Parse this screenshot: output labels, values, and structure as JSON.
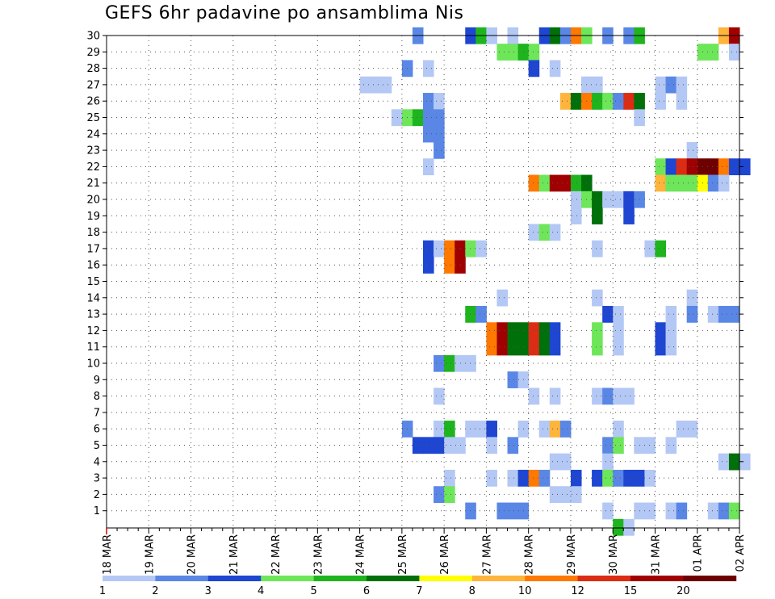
{
  "chart_data": {
    "type": "heatmap",
    "title": "GEFS 6hr padavine po ansamblima Nis",
    "xlabel": "",
    "ylabel": "",
    "grid": true,
    "x_tick_labels": [
      "18 MAR",
      "19 MAR",
      "20 MAR",
      "21 MAR",
      "22 MAR",
      "23 MAR",
      "24 MAR",
      "25 MAR",
      "26 MAR",
      "27 MAR",
      "28 MAR",
      "29 MAR",
      "30 MAR",
      "31 MAR",
      "01 APR",
      "02 APR"
    ],
    "y_tick_labels": [
      "1",
      "2",
      "3",
      "4",
      "5",
      "6",
      "7",
      "8",
      "9",
      "10",
      "11",
      "12",
      "13",
      "14",
      "15",
      "16",
      "17",
      "18",
      "19",
      "20",
      "21",
      "22",
      "23",
      "24",
      "25",
      "26",
      "27",
      "28",
      "29",
      "30"
    ],
    "x_unit": "6-hour steps since 18 MAR 00Z",
    "xlim": [
      0,
      60
    ],
    "ylim": [
      0.5,
      30.5
    ],
    "legend": {
      "placement": "bottom",
      "labels": [
        "1",
        "2",
        "3",
        "4",
        "5",
        "6",
        "7",
        "8",
        "10",
        "12",
        "15",
        "20"
      ],
      "colors": [
        "#b4c8f5",
        "#5a87e6",
        "#1e46d2",
        "#6ee65a",
        "#1eb41e",
        "#00700a",
        "#ffff00",
        "#ffb43c",
        "#ff7800",
        "#dc2d14",
        "#a00000",
        "#6e0000"
      ]
    },
    "cells": [
      [
        30,
        29,
        1
      ],
      [
        30,
        34,
        2
      ],
      [
        30,
        35,
        4
      ],
      [
        30,
        36,
        0
      ],
      [
        30,
        38,
        0
      ],
      [
        30,
        41,
        2
      ],
      [
        30,
        42,
        5
      ],
      [
        30,
        43,
        1
      ],
      [
        30,
        44,
        8
      ],
      [
        30,
        45,
        3
      ],
      [
        30,
        47,
        1
      ],
      [
        30,
        49,
        1
      ],
      [
        30,
        50,
        4
      ],
      [
        30,
        58,
        7
      ],
      [
        30,
        59,
        10
      ],
      [
        29,
        37,
        3
      ],
      [
        29,
        38,
        3
      ],
      [
        29,
        39,
        4
      ],
      [
        29,
        40,
        3
      ],
      [
        29,
        56,
        3
      ],
      [
        29,
        57,
        3
      ],
      [
        29,
        59,
        0
      ],
      [
        28,
        28,
        1
      ],
      [
        28,
        30,
        0
      ],
      [
        28,
        40,
        2
      ],
      [
        28,
        42,
        0
      ],
      [
        27,
        24,
        0
      ],
      [
        27,
        25,
        0
      ],
      [
        27,
        26,
        0
      ],
      [
        27,
        45,
        0
      ],
      [
        27,
        46,
        0
      ],
      [
        27,
        52,
        0
      ],
      [
        27,
        53,
        1
      ],
      [
        27,
        54,
        0
      ],
      [
        26,
        30,
        1
      ],
      [
        26,
        31,
        0
      ],
      [
        26,
        43,
        7
      ],
      [
        26,
        44,
        5
      ],
      [
        26,
        45,
        8
      ],
      [
        26,
        46,
        4
      ],
      [
        26,
        47,
        3
      ],
      [
        26,
        48,
        1
      ],
      [
        26,
        49,
        9
      ],
      [
        26,
        50,
        5
      ],
      [
        26,
        52,
        0
      ],
      [
        26,
        54,
        0
      ],
      [
        25,
        27,
        0
      ],
      [
        25,
        28,
        3
      ],
      [
        25,
        29,
        4
      ],
      [
        25,
        30,
        1
      ],
      [
        25,
        31,
        1
      ],
      [
        25,
        50,
        0
      ],
      [
        24,
        30,
        1
      ],
      [
        24,
        31,
        1
      ],
      [
        23,
        31,
        1
      ],
      [
        23,
        55,
        0
      ],
      [
        22,
        30,
        0
      ],
      [
        22,
        52,
        3
      ],
      [
        22,
        53,
        2
      ],
      [
        22,
        54,
        9
      ],
      [
        22,
        55,
        10
      ],
      [
        22,
        56,
        11
      ],
      [
        22,
        57,
        11
      ],
      [
        22,
        58,
        8
      ],
      [
        22,
        59,
        2
      ],
      [
        22,
        60,
        2
      ],
      [
        21,
        40,
        8
      ],
      [
        21,
        41,
        3
      ],
      [
        21,
        42,
        10
      ],
      [
        21,
        43,
        10
      ],
      [
        21,
        44,
        4
      ],
      [
        21,
        45,
        5
      ],
      [
        21,
        52,
        7
      ],
      [
        21,
        53,
        3
      ],
      [
        21,
        54,
        3
      ],
      [
        21,
        55,
        3
      ],
      [
        21,
        56,
        6
      ],
      [
        21,
        57,
        1
      ],
      [
        21,
        58,
        0
      ],
      [
        20,
        44,
        0
      ],
      [
        20,
        45,
        3
      ],
      [
        20,
        46,
        5
      ],
      [
        20,
        47,
        0
      ],
      [
        20,
        48,
        0
      ],
      [
        20,
        49,
        2
      ],
      [
        20,
        50,
        1
      ],
      [
        19,
        44,
        0
      ],
      [
        19,
        46,
        5
      ],
      [
        19,
        49,
        2
      ],
      [
        18,
        40,
        0
      ],
      [
        18,
        41,
        3
      ],
      [
        18,
        42,
        0
      ],
      [
        17,
        30,
        2
      ],
      [
        17,
        31,
        0
      ],
      [
        17,
        32,
        8
      ],
      [
        17,
        33,
        10
      ],
      [
        17,
        34,
        3
      ],
      [
        17,
        35,
        0
      ],
      [
        17,
        46,
        0
      ],
      [
        17,
        51,
        0
      ],
      [
        17,
        52,
        4
      ],
      [
        16,
        30,
        2
      ],
      [
        16,
        32,
        8
      ],
      [
        16,
        33,
        10
      ],
      [
        14,
        37,
        0
      ],
      [
        14,
        46,
        0
      ],
      [
        14,
        55,
        0
      ],
      [
        13,
        34,
        4
      ],
      [
        13,
        35,
        1
      ],
      [
        13,
        47,
        2
      ],
      [
        13,
        48,
        0
      ],
      [
        13,
        53,
        0
      ],
      [
        13,
        55,
        1
      ],
      [
        13,
        57,
        0
      ],
      [
        13,
        58,
        1
      ],
      [
        13,
        59,
        1
      ],
      [
        12,
        36,
        8
      ],
      [
        12,
        37,
        10
      ],
      [
        12,
        38,
        5
      ],
      [
        12,
        39,
        5
      ],
      [
        12,
        40,
        9
      ],
      [
        12,
        41,
        5
      ],
      [
        12,
        42,
        2
      ],
      [
        12,
        46,
        3
      ],
      [
        12,
        48,
        0
      ],
      [
        12,
        52,
        2
      ],
      [
        12,
        53,
        0
      ],
      [
        11,
        36,
        8
      ],
      [
        11,
        37,
        10
      ],
      [
        11,
        38,
        5
      ],
      [
        11,
        39,
        5
      ],
      [
        11,
        40,
        9
      ],
      [
        11,
        41,
        5
      ],
      [
        11,
        42,
        2
      ],
      [
        11,
        46,
        3
      ],
      [
        11,
        48,
        0
      ],
      [
        11,
        52,
        2
      ],
      [
        11,
        53,
        0
      ],
      [
        10,
        31,
        1
      ],
      [
        10,
        32,
        4
      ],
      [
        10,
        33,
        0
      ],
      [
        10,
        34,
        0
      ],
      [
        9,
        38,
        1
      ],
      [
        9,
        39,
        0
      ],
      [
        8,
        31,
        0
      ],
      [
        8,
        40,
        0
      ],
      [
        8,
        42,
        0
      ],
      [
        8,
        46,
        0
      ],
      [
        8,
        47,
        1
      ],
      [
        8,
        48,
        0
      ],
      [
        8,
        49,
        0
      ],
      [
        6,
        28,
        1
      ],
      [
        6,
        31,
        0
      ],
      [
        6,
        32,
        4
      ],
      [
        6,
        34,
        0
      ],
      [
        6,
        35,
        0
      ],
      [
        6,
        36,
        2
      ],
      [
        6,
        39,
        0
      ],
      [
        6,
        41,
        0
      ],
      [
        6,
        42,
        7
      ],
      [
        6,
        43,
        1
      ],
      [
        6,
        48,
        0
      ],
      [
        6,
        54,
        0
      ],
      [
        6,
        55,
        0
      ],
      [
        5,
        29,
        2
      ],
      [
        5,
        30,
        2
      ],
      [
        5,
        31,
        2
      ],
      [
        5,
        32,
        0
      ],
      [
        5,
        33,
        0
      ],
      [
        5,
        36,
        0
      ],
      [
        5,
        38,
        1
      ],
      [
        5,
        47,
        1
      ],
      [
        5,
        48,
        3
      ],
      [
        5,
        50,
        0
      ],
      [
        5,
        51,
        0
      ],
      [
        5,
        53,
        0
      ],
      [
        4,
        42,
        0
      ],
      [
        4,
        43,
        0
      ],
      [
        4,
        47,
        0
      ],
      [
        4,
        58,
        0
      ],
      [
        4,
        59,
        5
      ],
      [
        4,
        60,
        0
      ],
      [
        3,
        32,
        0
      ],
      [
        3,
        36,
        0
      ],
      [
        3,
        38,
        0
      ],
      [
        3,
        39,
        2
      ],
      [
        3,
        40,
        8
      ],
      [
        3,
        41,
        1
      ],
      [
        3,
        44,
        2
      ],
      [
        3,
        46,
        2
      ],
      [
        3,
        47,
        3
      ],
      [
        3,
        48,
        1
      ],
      [
        3,
        49,
        2
      ],
      [
        3,
        50,
        2
      ],
      [
        3,
        51,
        0
      ],
      [
        2,
        31,
        1
      ],
      [
        2,
        32,
        3
      ],
      [
        2,
        42,
        0
      ],
      [
        2,
        43,
        0
      ],
      [
        2,
        44,
        0
      ],
      [
        1,
        34,
        1
      ],
      [
        1,
        37,
        1
      ],
      [
        1,
        38,
        1
      ],
      [
        1,
        39,
        1
      ],
      [
        1,
        47,
        0
      ],
      [
        1,
        50,
        0
      ],
      [
        1,
        51,
        0
      ],
      [
        1,
        53,
        0
      ],
      [
        1,
        54,
        1
      ],
      [
        1,
        57,
        0
      ],
      [
        1,
        58,
        1
      ],
      [
        1,
        59,
        3
      ],
      [
        0,
        48,
        4
      ],
      [
        0,
        49,
        0
      ]
    ]
  }
}
